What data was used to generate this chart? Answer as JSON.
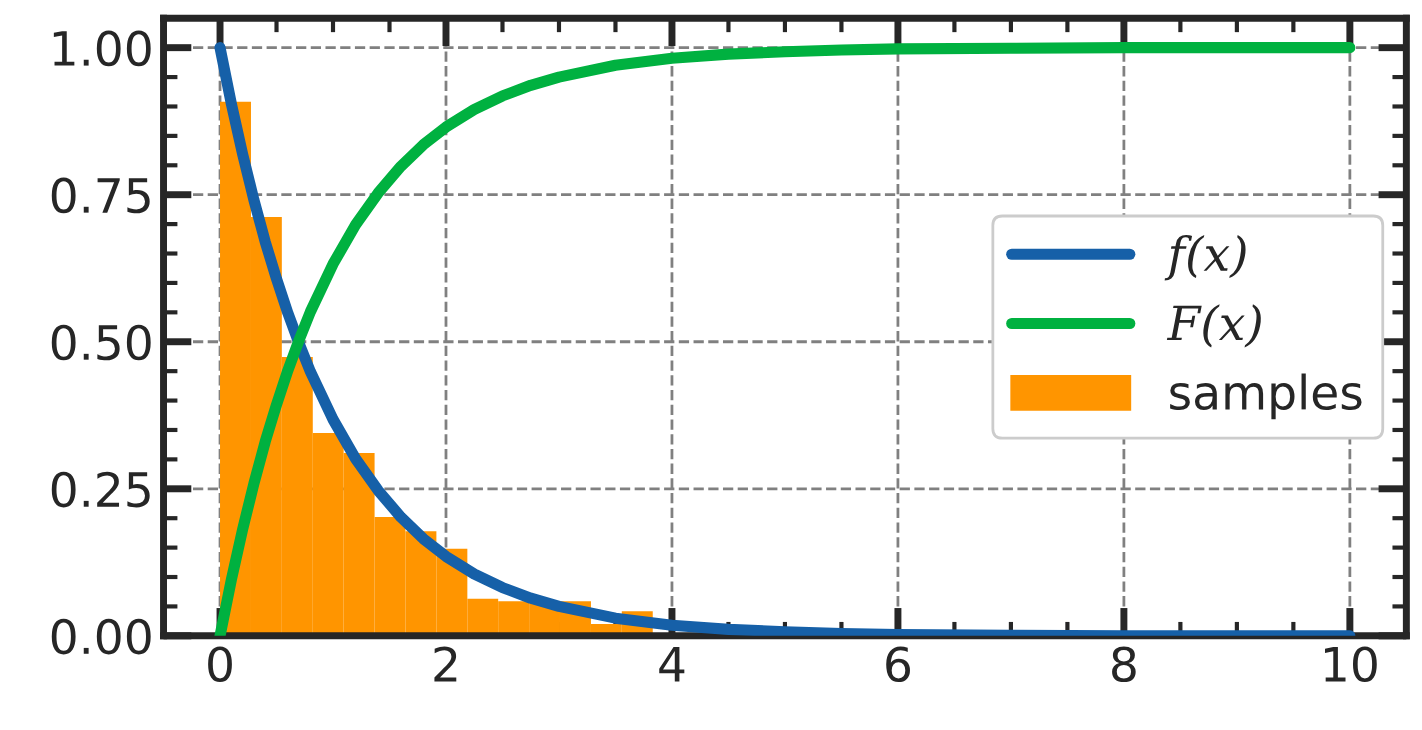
{
  "chart_data": {
    "type": "histogram",
    "series": [
      {
        "name": "f(x)",
        "type": "line",
        "color": "#1660a8",
        "x": [
          0,
          0.1,
          0.2,
          0.3,
          0.4,
          0.5,
          0.6,
          0.7,
          0.8,
          1,
          1.2,
          1.4,
          1.6,
          1.8,
          2,
          2.25,
          2.5,
          2.75,
          3,
          3.5,
          4,
          4.5,
          5,
          5.5,
          6,
          7,
          8,
          9,
          10
        ],
        "values": [
          1,
          0.905,
          0.819,
          0.741,
          0.67,
          0.607,
          0.549,
          0.497,
          0.449,
          0.368,
          0.301,
          0.247,
          0.202,
          0.165,
          0.135,
          0.105,
          0.082,
          0.064,
          0.05,
          0.03,
          0.018,
          0.011,
          0.007,
          0.004,
          0.002,
          0.001,
          0,
          0,
          0
        ]
      },
      {
        "name": "F(x)",
        "type": "line",
        "color": "#00b140",
        "x": [
          0,
          0.1,
          0.2,
          0.3,
          0.4,
          0.5,
          0.6,
          0.7,
          0.8,
          1,
          1.2,
          1.4,
          1.6,
          1.8,
          2,
          2.25,
          2.5,
          2.75,
          3,
          3.5,
          4,
          4.5,
          5,
          5.5,
          6,
          7,
          8,
          9,
          10
        ],
        "values": [
          0,
          0.095,
          0.181,
          0.259,
          0.33,
          0.393,
          0.451,
          0.503,
          0.551,
          0.632,
          0.699,
          0.753,
          0.798,
          0.835,
          0.865,
          0.895,
          0.918,
          0.936,
          0.95,
          0.97,
          0.982,
          0.989,
          0.993,
          0.996,
          0.998,
          0.999,
          1,
          1,
          1
        ]
      },
      {
        "name": "samples",
        "color": "#ff9500",
        "bins": [
          0,
          0.274,
          0.547,
          0.821,
          1.094,
          1.368,
          1.641,
          1.915,
          2.189,
          2.462,
          2.736,
          3.009,
          3.283,
          3.556,
          3.83
        ],
        "values": [
          0.908,
          0.712,
          0.474,
          0.345,
          0.311,
          0.202,
          0.178,
          0.148,
          0.063,
          0.059,
          0.059,
          0.059,
          0.02,
          0.042
        ]
      }
    ],
    "xlim": [
      -0.5,
      10.5
    ],
    "ylim": [
      0,
      1.05
    ],
    "xticks": [
      0,
      2,
      4,
      6,
      8,
      10
    ],
    "yticks": [
      {
        "value": 0,
        "label": "0.00"
      },
      {
        "value": 0.25,
        "label": "0.25"
      },
      {
        "value": 0.5,
        "label": "0.50"
      },
      {
        "value": 0.75,
        "label": "0.75"
      },
      {
        "value": 1,
        "label": "1.00"
      }
    ],
    "grid": true,
    "legend": "center right",
    "line_style": "solid",
    "marker": "none"
  }
}
